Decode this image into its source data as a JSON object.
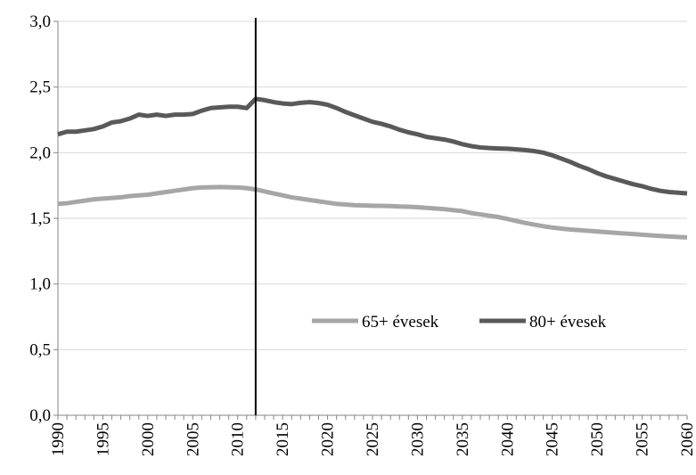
{
  "chart_data": {
    "type": "line",
    "title": "",
    "xlabel": "",
    "ylabel": "",
    "xlim": [
      1990,
      2060
    ],
    "ylim": [
      0,
      3
    ],
    "x_ticks": [
      "1990",
      "1995",
      "2000",
      "2005",
      "2010",
      "2015",
      "2020",
      "2025",
      "2030",
      "2035",
      "2040",
      "2045",
      "2050",
      "2055",
      "2060"
    ],
    "y_ticks": [
      "0,0",
      "0,5",
      "1,0",
      "1,5",
      "2,0",
      "2,5",
      "3,0"
    ],
    "y_tick_values": [
      0,
      0.5,
      1.0,
      1.5,
      2.0,
      2.5,
      3.0
    ],
    "grid": "horizontal",
    "legend_position": "center-right",
    "vertical_marker_x": 2012,
    "x": [
      1990,
      1991,
      1992,
      1993,
      1994,
      1995,
      1996,
      1997,
      1998,
      1999,
      2000,
      2001,
      2002,
      2003,
      2004,
      2005,
      2006,
      2007,
      2008,
      2009,
      2010,
      2011,
      2012,
      2013,
      2014,
      2015,
      2016,
      2017,
      2018,
      2019,
      2020,
      2021,
      2022,
      2023,
      2024,
      2025,
      2026,
      2027,
      2028,
      2029,
      2030,
      2031,
      2032,
      2033,
      2034,
      2035,
      2036,
      2037,
      2038,
      2039,
      2040,
      2041,
      2042,
      2043,
      2044,
      2045,
      2046,
      2047,
      2048,
      2049,
      2050,
      2051,
      2052,
      2053,
      2054,
      2055,
      2056,
      2057,
      2058,
      2059,
      2060
    ],
    "series": [
      {
        "name": "65+ évesek",
        "color": "#a6a6a6",
        "values": [
          1.61,
          1.615,
          1.625,
          1.635,
          1.645,
          1.65,
          1.655,
          1.66,
          1.67,
          1.675,
          1.68,
          1.69,
          1.7,
          1.71,
          1.72,
          1.73,
          1.735,
          1.737,
          1.738,
          1.737,
          1.735,
          1.73,
          1.72,
          1.705,
          1.69,
          1.675,
          1.66,
          1.65,
          1.64,
          1.63,
          1.62,
          1.61,
          1.605,
          1.6,
          1.598,
          1.596,
          1.595,
          1.593,
          1.59,
          1.588,
          1.585,
          1.58,
          1.575,
          1.57,
          1.562,
          1.555,
          1.54,
          1.53,
          1.52,
          1.51,
          1.495,
          1.48,
          1.465,
          1.452,
          1.44,
          1.43,
          1.422,
          1.415,
          1.41,
          1.405,
          1.4,
          1.395,
          1.39,
          1.385,
          1.38,
          1.375,
          1.37,
          1.366,
          1.362,
          1.358,
          1.355
        ]
      },
      {
        "name": "80+ évesek",
        "color": "#595959",
        "values": [
          2.14,
          2.16,
          2.16,
          2.17,
          2.18,
          2.2,
          2.23,
          2.24,
          2.26,
          2.29,
          2.28,
          2.29,
          2.28,
          2.29,
          2.29,
          2.295,
          2.32,
          2.34,
          2.345,
          2.35,
          2.35,
          2.34,
          2.41,
          2.4,
          2.385,
          2.375,
          2.37,
          2.38,
          2.385,
          2.378,
          2.365,
          2.34,
          2.31,
          2.285,
          2.26,
          2.235,
          2.22,
          2.2,
          2.175,
          2.155,
          2.14,
          2.12,
          2.11,
          2.1,
          2.085,
          2.065,
          2.05,
          2.04,
          2.035,
          2.032,
          2.03,
          2.025,
          2.02,
          2.012,
          2.0,
          1.98,
          1.955,
          1.93,
          1.9,
          1.875,
          1.845,
          1.82,
          1.8,
          1.78,
          1.76,
          1.745,
          1.725,
          1.71,
          1.7,
          1.695,
          1.69
        ]
      }
    ]
  }
}
